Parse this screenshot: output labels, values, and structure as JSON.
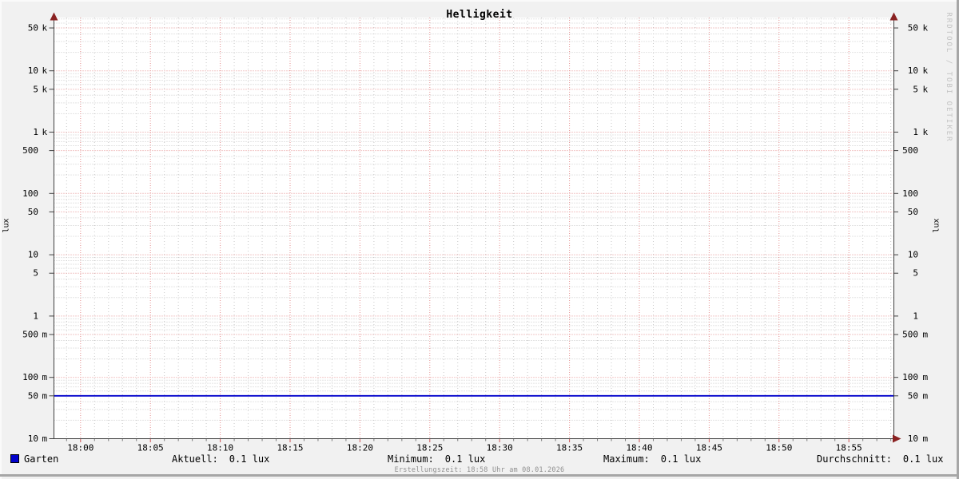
{
  "title": "Helligkeit",
  "axis_label_left": "lux",
  "axis_label_right": "lux",
  "watermark": "RRDTOOL / TOBI OETIKER",
  "footer": "Erstellungszeit: 18:58 Uhr am 08.01.2026",
  "legend": {
    "series": {
      "label": "Garten",
      "color": "#0202cc"
    },
    "stats": [
      {
        "label": "Aktuell:",
        "value": "0.1 lux"
      },
      {
        "label": "Minimum:",
        "value": "0.1 lux"
      },
      {
        "label": "Maximum:",
        "value": "0.1 lux"
      },
      {
        "label": "Durchschnitt:",
        "value": "0.1 lux"
      }
    ]
  },
  "colors": {
    "background": "#f1f1f1",
    "canvas": "#ffffff",
    "major_grid": "#e59090",
    "minor_grid": "#c9c9c9",
    "axis": "#404040",
    "arrow": "#8a2222",
    "major_tick": "#cc5555",
    "minor_tick": "#777777",
    "series": "#0202cc"
  },
  "chart_data": {
    "type": "line",
    "title": "Helligkeit",
    "ylabel": "lux",
    "y_scale": "log",
    "ylim": [
      0.01,
      75000
    ],
    "x_window": {
      "start": "17:58",
      "end": "18:58"
    },
    "grid": {
      "minor_multipliers": [
        2,
        3,
        4,
        6,
        7,
        8,
        9
      ],
      "x_minor_step_minutes": 1,
      "grid_on": true
    },
    "x_ticks": [
      {
        "label": "18:00",
        "minute": 1080
      },
      {
        "label": "18:05",
        "minute": 1085
      },
      {
        "label": "18:10",
        "minute": 1090
      },
      {
        "label": "18:15",
        "minute": 1095
      },
      {
        "label": "18:20",
        "minute": 1100
      },
      {
        "label": "18:25",
        "minute": 1105
      },
      {
        "label": "18:30",
        "minute": 1110
      },
      {
        "label": "18:35",
        "minute": 1115
      },
      {
        "label": "18:40",
        "minute": 1120
      },
      {
        "label": "18:45",
        "minute": 1125
      },
      {
        "label": "18:50",
        "minute": 1130
      },
      {
        "label": "18:55",
        "minute": 1135
      }
    ],
    "y_ticks": [
      {
        "num": "50",
        "unit": "k",
        "value": 50000
      },
      {
        "num": "10",
        "unit": "k",
        "value": 10000
      },
      {
        "num": "5",
        "unit": "k",
        "value": 5000
      },
      {
        "num": "1",
        "unit": "k",
        "value": 1000
      },
      {
        "num": "500",
        "unit": "",
        "value": 500
      },
      {
        "num": "100",
        "unit": "",
        "value": 100
      },
      {
        "num": "50",
        "unit": "",
        "value": 50
      },
      {
        "num": "10",
        "unit": "",
        "value": 10
      },
      {
        "num": "5",
        "unit": "",
        "value": 5
      },
      {
        "num": "1",
        "unit": "",
        "value": 1
      },
      {
        "num": "500",
        "unit": "m",
        "value": 0.5
      },
      {
        "num": "100",
        "unit": "m",
        "value": 0.1
      },
      {
        "num": "50",
        "unit": "m",
        "value": 0.05
      },
      {
        "num": "10",
        "unit": "m",
        "value": 0.01
      }
    ],
    "series": [
      {
        "name": "Garten",
        "color": "#0202cc",
        "shape": "constant-horizontal-line",
        "reported_value_lux": 0.1,
        "plotted_level_lux": 0.05,
        "x_range": [
          "17:58",
          "18:58"
        ]
      }
    ],
    "legend_position": "bottom"
  }
}
